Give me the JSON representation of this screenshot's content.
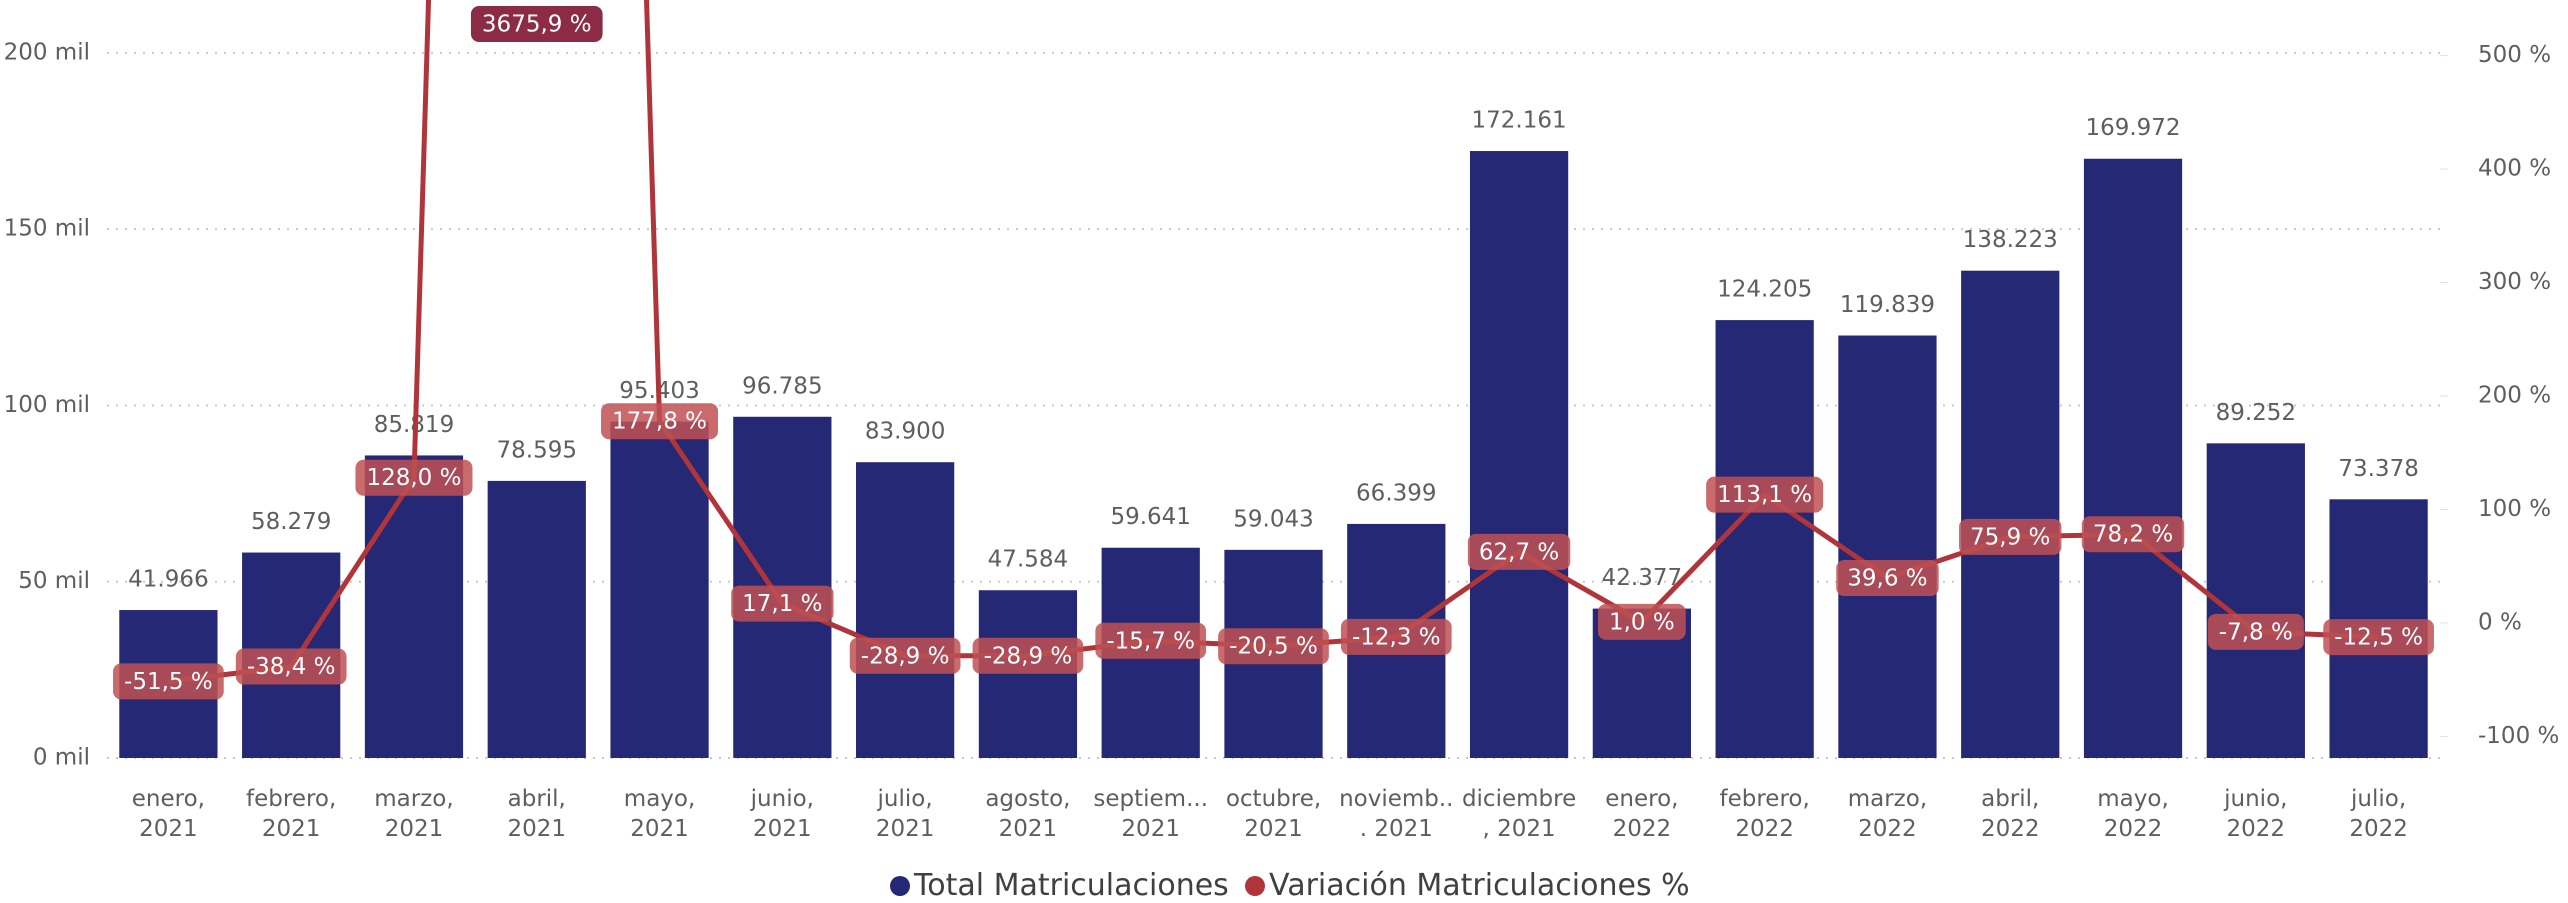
{
  "chart_data": {
    "type": "bar_line",
    "categories": [
      "enero, 2021",
      "febrero, 2021",
      "marzo, 2021",
      "abril, 2021",
      "mayo, 2021",
      "junio, 2021",
      "julio, 2021",
      "agosto, 2021",
      "septiem... 2021",
      "octubre, 2021",
      "noviemb... 2021",
      "diciembre, 2021",
      "enero, 2022",
      "febrero, 2022",
      "marzo, 2022",
      "abril, 2022",
      "mayo, 2022",
      "junio, 2022",
      "julio, 2022"
    ],
    "series": [
      {
        "name": "Total Matriculaciones",
        "color": "#252874",
        "type": "bar",
        "values": [
          41966,
          58279,
          85819,
          78595,
          95403,
          96785,
          83900,
          47584,
          59641,
          59043,
          66399,
          172161,
          42377,
          124205,
          119839,
          138223,
          169972,
          89252,
          73378
        ],
        "value_labels": [
          "41.966",
          "58.279",
          "85.819",
          "78.595",
          "95.403",
          "96.785",
          "83.900",
          "47.584",
          "59.641",
          "59.043",
          "66.399",
          "172.161",
          "42.377",
          "124.205",
          "119.839",
          "138.223",
          "169.972",
          "89.252",
          "73.378"
        ]
      },
      {
        "name": "Variación Matriculaciones %",
        "color": "#b0353a",
        "type": "line",
        "axis": "y2",
        "values": [
          -51.5,
          -38.4,
          128.0,
          3675.9,
          177.8,
          17.1,
          -28.9,
          -28.9,
          -15.7,
          -20.5,
          -12.3,
          62.7,
          1.0,
          113.1,
          39.6,
          75.9,
          78.2,
          -7.8,
          -12.5
        ],
        "value_labels": [
          "-51,5 %",
          "-38,4 %",
          "128,0 %",
          "3675,9 %",
          "177,8 %",
          "17,1 %",
          "-28,9 %",
          "-28,9 %",
          "-15,7 %",
          "-20,5 %",
          "-12,3 %",
          "62,7 %",
          "1,0 %",
          "113,1 %",
          "39,6 %",
          "75,9 %",
          "78,2 %",
          "-7,8 %",
          "-12,5 %"
        ]
      }
    ],
    "ylim": [
      0,
      215000
    ],
    "yticks": [
      {
        "value": 0,
        "label": "0 mil"
      },
      {
        "value": 50000,
        "label": "50 mil"
      },
      {
        "value": 100000,
        "label": "100 mil"
      },
      {
        "value": 150000,
        "label": "150 mil"
      },
      {
        "value": 200000,
        "label": "200 mil"
      }
    ],
    "y2lim": [
      -119,
      549
    ],
    "y2ticks": [
      {
        "value": -100,
        "label": "-100 %"
      },
      {
        "value": 0,
        "label": "0 %"
      },
      {
        "value": 100,
        "label": "100 %"
      },
      {
        "value": 200,
        "label": "200 %"
      },
      {
        "value": 300,
        "label": "300 %"
      },
      {
        "value": 400,
        "label": "400 %"
      },
      {
        "value": 500,
        "label": "500 %"
      }
    ],
    "grid": true,
    "legend": "bottom"
  }
}
